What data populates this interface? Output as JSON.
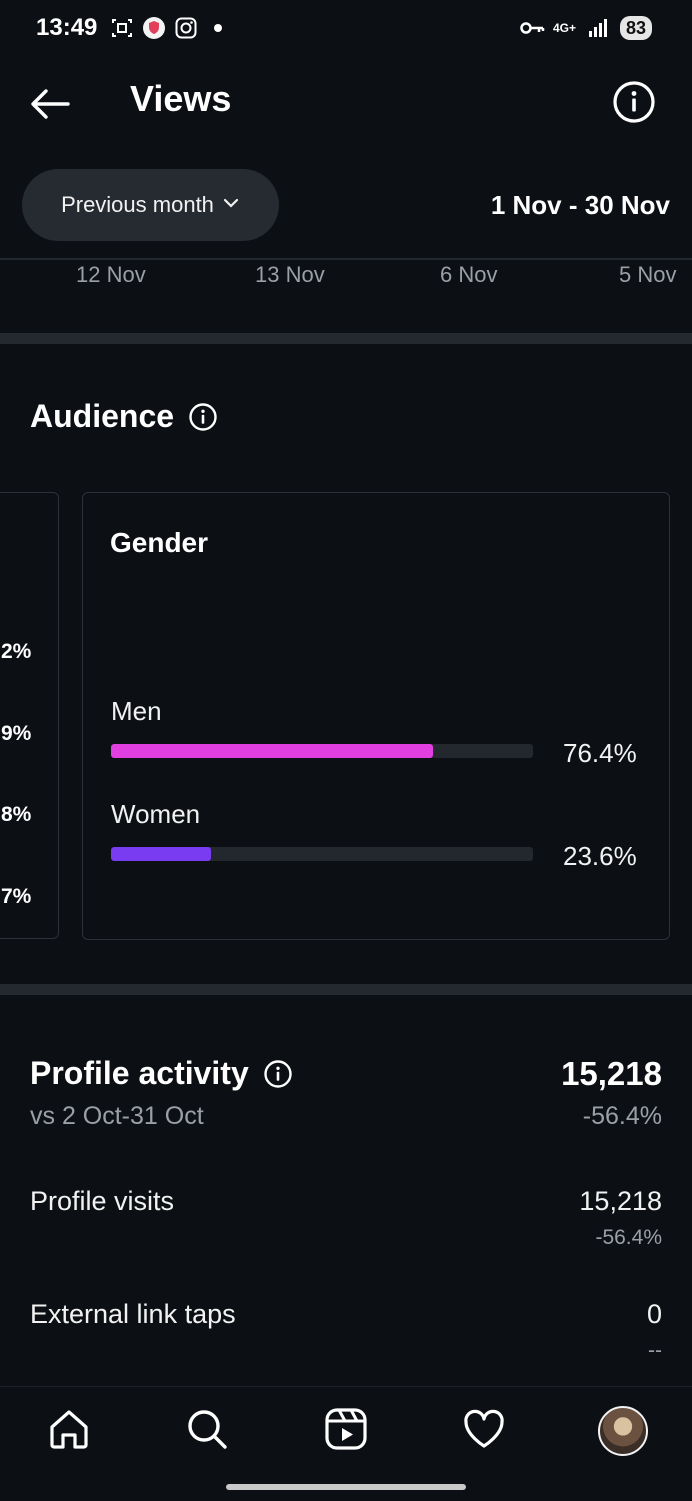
{
  "status_bar": {
    "time": "13:49",
    "network": "4G+",
    "battery": "83",
    "icons_left": [
      "screenshot-icon",
      "shield-app-icon",
      "instagram-icon",
      "dot-icon"
    ],
    "icons_right": [
      "key-icon",
      "network-arrows-icon",
      "signal-icon",
      "battery-icon"
    ]
  },
  "header": {
    "title": "Views",
    "back_icon": "back-arrow-icon",
    "info_icon": "info-icon"
  },
  "filter": {
    "period_label": "Previous month",
    "date_range": "1 Nov - 30 Nov"
  },
  "top_dates": [
    "12 Nov",
    "13 Nov",
    "6 Nov",
    "5 Nov"
  ],
  "audience": {
    "title": "Audience",
    "previous_card_percentages": [
      "2%",
      "9%",
      "8%",
      "7%"
    ],
    "gender": {
      "title": "Gender",
      "items": [
        {
          "label": "Men",
          "value": "76.4%",
          "fraction": 0.764,
          "color": "#e23fe0"
        },
        {
          "label": "Women",
          "value": "23.6%",
          "fraction": 0.236,
          "color": "#7a3cf0"
        }
      ]
    }
  },
  "profile_activity": {
    "title": "Profile activity",
    "comparison": "vs 2 Oct-31 Oct",
    "total": "15,218",
    "total_change": "-56.4%",
    "rows": [
      {
        "label": "Profile visits",
        "value": "15,218",
        "change": "-56.4%"
      },
      {
        "label": "External link taps",
        "value": "0",
        "change": "--"
      }
    ]
  },
  "bottom_nav": [
    "home-icon",
    "search-icon",
    "reels-icon",
    "heart-icon",
    "profile-avatar"
  ]
}
